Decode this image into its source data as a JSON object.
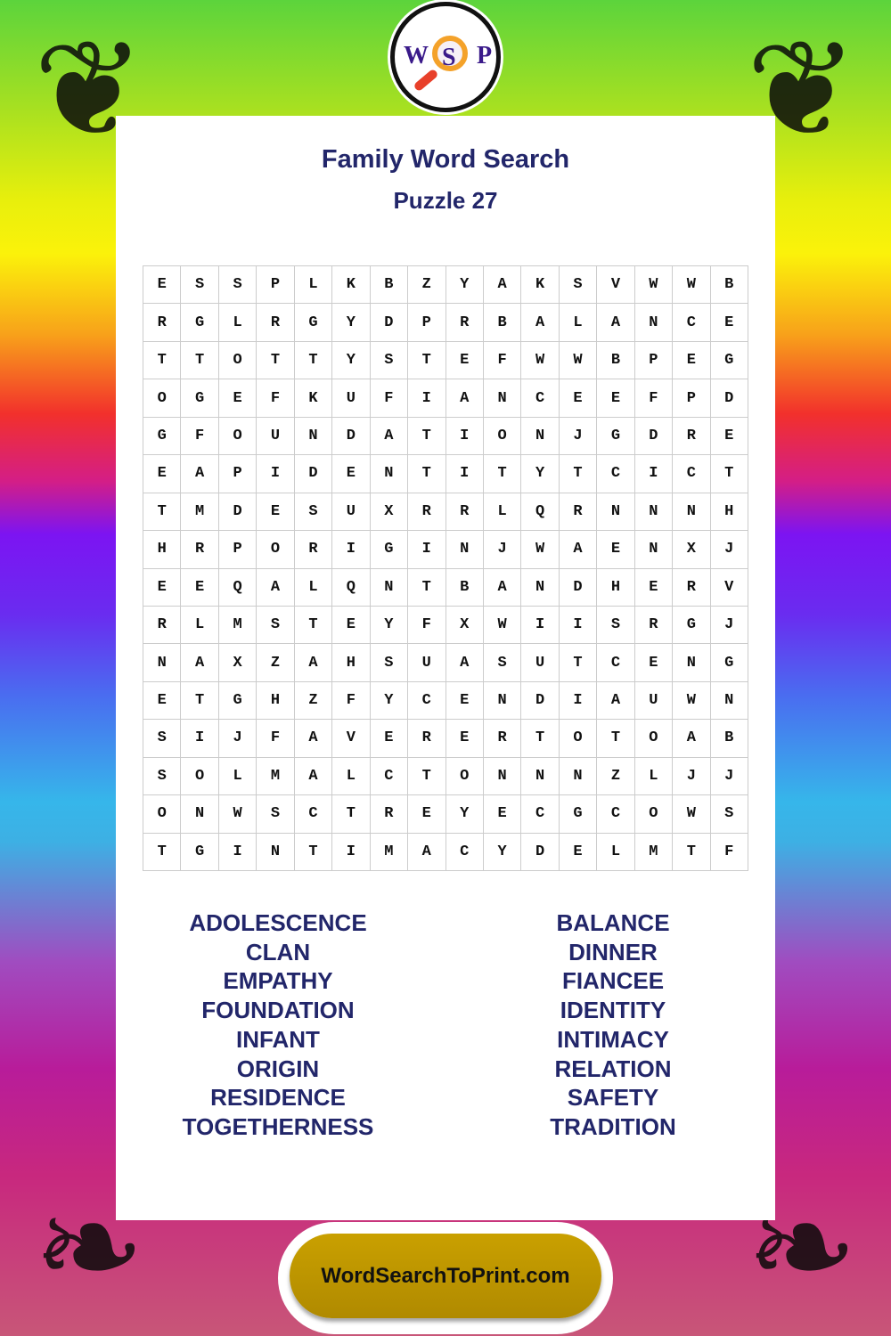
{
  "logo": {
    "letters": [
      "W",
      "S",
      "P"
    ]
  },
  "title": "Family Word Search",
  "subtitle": "Puzzle 27",
  "grid": [
    "ESSPLKBZYAKSVWWB",
    "RGLRGYDPRBALANCE",
    "TTOTTYSTEFWWBPEG",
    "OGEFKUFIANCEEFPD",
    "GFOUNDATIONJGDRE",
    "EAPIDENTITYTCICT",
    "TMDESUXRRLQRNNNH",
    "HRPORIGINJWAENXJ",
    "EEQALQNTBANDHERV",
    "RLMSTEYFXWIISRGJ",
    "NAXZAHSUASUTCENG",
    "ETGHZFYCENDIAUWN",
    "SIJFAVERERTOTOAB",
    "SOLMALCTONNNZLJJ",
    "ONWSCTREYECGCOWS",
    "TGINTIMACYDELMTF"
  ],
  "words_left": [
    "ADOLESCENCE",
    "CLAN",
    "EMPATHY",
    "FOUNDATION",
    "INFANT",
    "ORIGIN",
    "RESIDENCE",
    "TOGETHERNESS"
  ],
  "words_right": [
    "BALANCE",
    "DINNER",
    "FIANCEE",
    "IDENTITY",
    "INTIMACY",
    "RELATION",
    "SAFETY",
    "TRADITION"
  ],
  "footer_button": "WordSearchToPrint.com",
  "colors": {
    "text": "#22266a",
    "button": "#c9a000"
  }
}
